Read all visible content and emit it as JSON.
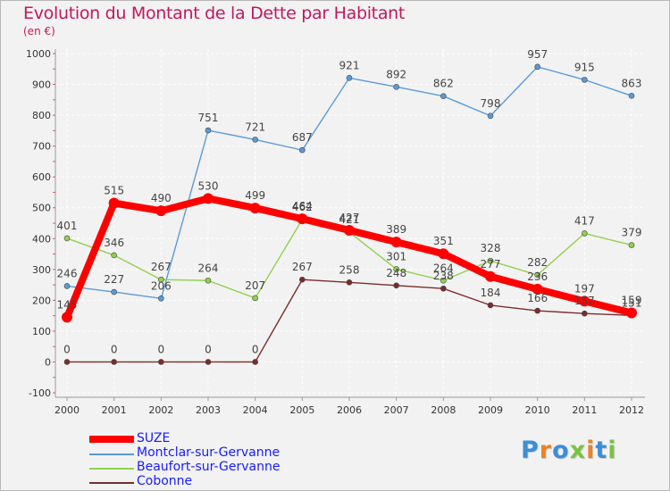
{
  "title": "Evolution du Montant de la Dette par Habitant",
  "subtitle": "(en €)",
  "logo": {
    "text": "Proxiti",
    "colors": [
      "#3b8fd6",
      "#e8832a",
      "#3b8fd6",
      "#7cc242",
      "#e8832a",
      "#3b8fd6",
      "#7cc242"
    ]
  },
  "chart_data": {
    "type": "line",
    "title": "Evolution du Montant de la Dette par Habitant",
    "subtitle": "(en €)",
    "x": [
      "2000",
      "2001",
      "2002",
      "2003",
      "2004",
      "2005",
      "2006",
      "2007",
      "2008",
      "2009",
      "2010",
      "2011",
      "2012"
    ],
    "ylim": [
      -100,
      1000
    ],
    "yticks": [
      "-100",
      "0",
      "100",
      "200",
      "300",
      "400",
      "500",
      "600",
      "700",
      "800",
      "900",
      "1000"
    ],
    "grid": true,
    "legend_position": "bottom-left",
    "series": [
      {
        "name": "SUZE",
        "color": "#ff0000",
        "values": [
          145,
          515,
          490,
          530,
          499,
          464,
          427,
          389,
          351,
          277,
          236,
          197,
          159
        ],
        "labels": [
          "145",
          "515",
          "490",
          "530",
          "499",
          "464",
          "427",
          "389",
          "351",
          "277",
          "236",
          "197",
          "159"
        ]
      },
      {
        "name": "Montclar-sur-Gervanne",
        "color": "#5b9bd5",
        "values": [
          246,
          227,
          206,
          751,
          721,
          687,
          921,
          892,
          862,
          798,
          957,
          915,
          863
        ],
        "labels": [
          "246",
          "227",
          "206",
          "751",
          "721",
          "687",
          "921",
          "892",
          "862",
          "798",
          "957",
          "915",
          "863"
        ]
      },
      {
        "name": "Beaufort-sur-Gervanne",
        "color": "#92d050",
        "values": [
          401,
          346,
          267,
          264,
          207,
          462,
          421,
          301,
          264,
          328,
          282,
          417,
          379
        ],
        "labels": [
          "401",
          "346",
          "267",
          "264",
          "207",
          "462",
          "421",
          "301",
          "264",
          "328",
          "282",
          "417",
          "379"
        ]
      },
      {
        "name": "Cobonne",
        "color": "#7b2c2c",
        "values": [
          0,
          0,
          0,
          0,
          0,
          267,
          258,
          248,
          238,
          184,
          166,
          157,
          151
        ],
        "labels": [
          "0",
          "0",
          "0",
          "0",
          "0",
          "267",
          "258",
          "248",
          "238",
          "184",
          "166",
          "157",
          "151"
        ]
      }
    ]
  }
}
